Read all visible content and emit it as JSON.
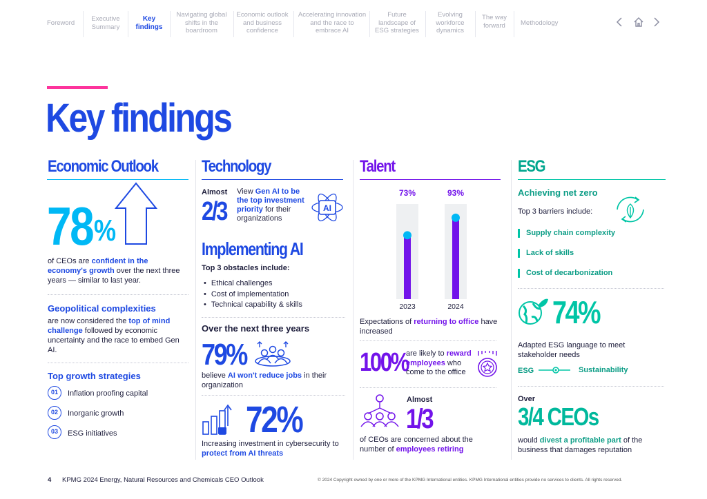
{
  "nav": {
    "items": [
      {
        "label": "Foreword"
      },
      {
        "label": "Executive Summary"
      },
      {
        "label": "Key findings"
      },
      {
        "label": "Navigating global shifts in the boardroom"
      },
      {
        "label": "Economic outlook and business confidence"
      },
      {
        "label": "Accelerating innovation and the race to embrace AI"
      },
      {
        "label": "Future landscape of ESG strategies"
      },
      {
        "label": "Evolving workforce dynamics"
      },
      {
        "label": "The way forward"
      },
      {
        "label": "Methodology"
      }
    ],
    "prev_icon": "chevron-left-icon",
    "home_icon": "home-icon",
    "next_icon": "chevron-right-icon"
  },
  "page": {
    "title": "Key findings"
  },
  "economic": {
    "heading": "Economic Outlook",
    "stat_value": "78",
    "stat_unit": "%",
    "stat_text_1": "of CEOs are ",
    "stat_text_2": "confident in the economy's growth",
    "stat_text_3": " over the next three years — similar to last year.",
    "geo_title": "Geopolitical complexities",
    "geo_text_1": "are now considered the ",
    "geo_text_2": "top of mind challenge",
    "geo_text_3": " followed by economic uncertainty and the race to embed Gen AI.",
    "growth_title": "Top growth strategies",
    "strategies": [
      {
        "num": "01",
        "label": "Inflation proofing capital"
      },
      {
        "num": "02",
        "label": "Inorganic growth"
      },
      {
        "num": "03",
        "label": "ESG initiatives"
      }
    ]
  },
  "technology": {
    "heading": "Technology",
    "almost": "Almost",
    "frac": "2/3",
    "genai_text_1": "View ",
    "genai_text_2": "Gen AI to be the top investment priority",
    "genai_text_3": " for their organizations",
    "ai_icon_label": "AI",
    "impl_title": "Implementing AI",
    "obstacles_title": "Top 3 obstacles include:",
    "obstacles": [
      "Ethical challenges",
      "Cost of implementation",
      "Technical capability & skills"
    ],
    "next3_title": "Over the next three years",
    "stat79": "79%",
    "stat79_text_1": "believe ",
    "stat79_text_2": "AI won't reduce jobs",
    "stat79_text_3": " in their organization",
    "stat72": "72%",
    "stat72_text_1": "Increasing investment in cybersecurity to ",
    "stat72_text_2": "protect from AI threats"
  },
  "talent": {
    "heading": "Talent",
    "bars": [
      {
        "year": "2023",
        "value": 73,
        "label": "73%"
      },
      {
        "year": "2024",
        "value": 93,
        "label": "93%"
      }
    ],
    "office_text_1": "Expectations of ",
    "office_text_2": "returning to office",
    "office_text_3": " have increased",
    "stat100": "100%",
    "stat100_text_1": "are likely to ",
    "stat100_text_2": "reward employees",
    "stat100_text_3": " who come to the office",
    "almost": "Almost",
    "frac": "1/3",
    "retire_text_1": "of CEOs are concerned about the number of ",
    "retire_text_2": "employees retiring"
  },
  "esg": {
    "heading": "ESG",
    "netzero_title": "Achieving net zero",
    "barriers_title": "Top 3 barriers include:",
    "barriers": [
      "Supply chain complexity",
      "Lack of skills",
      "Cost of decarbonization"
    ],
    "stat74": "74%",
    "stat74_text": "Adapted ESG language to meet stakeholder needs",
    "esg_label": "ESG",
    "sustainability_label": "Sustainability",
    "over": "Over",
    "ceos": "3/4 CEOs",
    "divest_text_1": "would ",
    "divest_text_2": "divest a profitable part",
    "divest_text_3": " of the business that damages reputation"
  },
  "footer": {
    "page_num": "4",
    "report": "KPMG 2024 Energy, Natural Resources and Chemicals CEO Outlook",
    "copyright": "© 2024 Copyright owned by one or more of the KPMG International entities. KPMG International entities provide no services to clients. All rights reserved."
  },
  "colors": {
    "blue": "#1e49e2",
    "cyan": "#00b8f5",
    "purple": "#7213ea",
    "teal": "#00c5a6",
    "pink": "#fd349c"
  }
}
